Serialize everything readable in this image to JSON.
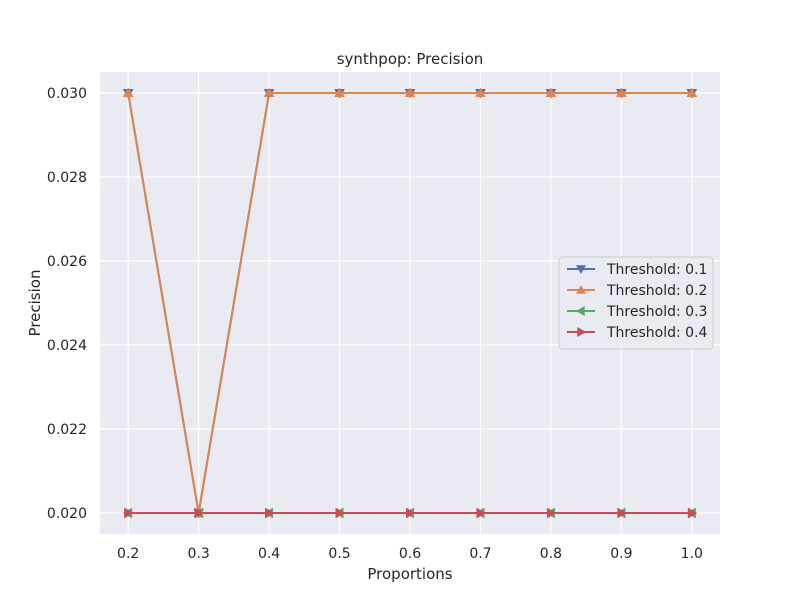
{
  "chart_data": {
    "type": "line",
    "title": "synthpop: Precision",
    "xlabel": "Proportions",
    "ylabel": "Precision",
    "x": [
      0.2,
      0.3,
      0.4,
      0.5,
      0.6,
      0.7,
      0.8,
      0.9,
      1.0
    ],
    "x_tick_labels": [
      "0.2",
      "0.3",
      "0.4",
      "0.5",
      "0.6",
      "0.7",
      "0.8",
      "0.9",
      "1.0"
    ],
    "y_ticks": [
      0.02,
      0.022,
      0.024,
      0.026,
      0.028,
      0.03
    ],
    "y_tick_labels": [
      "0.020",
      "0.022",
      "0.024",
      "0.026",
      "0.028",
      "0.030"
    ],
    "xlim": [
      0.16,
      1.04
    ],
    "ylim": [
      0.0195,
      0.0305
    ],
    "grid": true,
    "legend_position": "center-right",
    "background": "#eaeaf2",
    "series": [
      {
        "name": "Threshold: 0.1",
        "color": "#4c72b0",
        "marker": "triangle-down",
        "values": [
          0.03,
          0.02,
          0.03,
          0.03,
          0.03,
          0.03,
          0.03,
          0.03,
          0.03
        ]
      },
      {
        "name": "Threshold: 0.2",
        "color": "#dd8452",
        "marker": "triangle-up",
        "values": [
          0.03,
          0.02,
          0.03,
          0.03,
          0.03,
          0.03,
          0.03,
          0.03,
          0.03
        ]
      },
      {
        "name": "Threshold: 0.3",
        "color": "#55a868",
        "marker": "triangle-left",
        "values": [
          0.02,
          0.02,
          0.02,
          0.02,
          0.02,
          0.02,
          0.02,
          0.02,
          0.02
        ]
      },
      {
        "name": "Threshold: 0.4",
        "color": "#c44e52",
        "marker": "triangle-right",
        "values": [
          0.02,
          0.02,
          0.02,
          0.02,
          0.02,
          0.02,
          0.02,
          0.02,
          0.02
        ]
      }
    ]
  }
}
